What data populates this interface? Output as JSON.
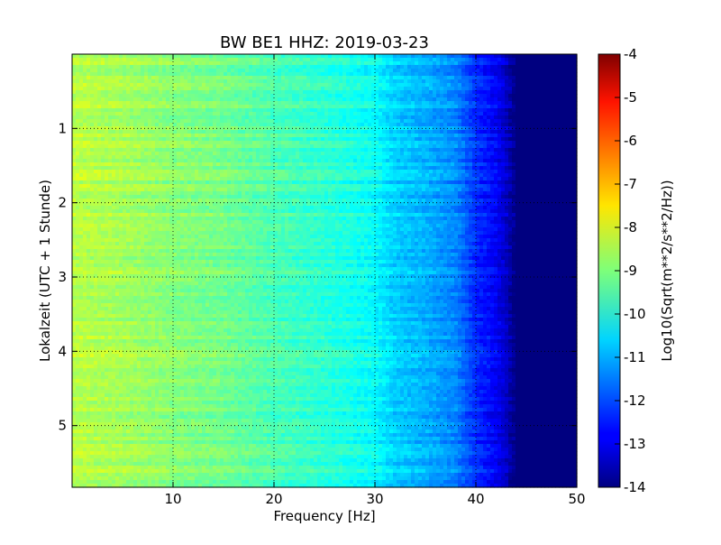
{
  "chart_data": {
    "type": "heatmap",
    "title": "BW BE1 HHZ: 2019-03-23",
    "xlabel": "Frequency [Hz]",
    "ylabel": "Lokalzeit (UTC + 1 Stunde)",
    "xlim": [
      0,
      50
    ],
    "ylim": [
      0,
      5.83
    ],
    "y_inverted": true,
    "x_ticks": [
      "10",
      "20",
      "30",
      "40",
      "50"
    ],
    "x_tick_values": [
      10,
      20,
      30,
      40,
      50
    ],
    "y_ticks": [
      "1",
      "2",
      "3",
      "4",
      "5"
    ],
    "y_tick_values": [
      1,
      2,
      3,
      4,
      5
    ],
    "grid": true,
    "colormap": "jet",
    "colorbar": {
      "label": "Log10(Sqrt(m**2/s**2/Hz))",
      "range": [
        -14,
        -4
      ],
      "ticks": [
        "-4",
        "-5",
        "-6",
        "-7",
        "-8",
        "-9",
        "-10",
        "-11",
        "-12",
        "-13",
        "-14"
      ],
      "tick_values": [
        -4,
        -5,
        -6,
        -7,
        -8,
        -9,
        -10,
        -11,
        -12,
        -13,
        -14
      ]
    },
    "spectrum_profile": {
      "freq_hz": [
        0,
        5,
        10,
        15,
        20,
        25,
        30,
        32,
        35,
        38,
        40,
        42,
        43,
        44,
        46,
        50
      ],
      "level": [
        -8.4,
        -8.6,
        -8.9,
        -9.1,
        -9.5,
        -9.8,
        -10.2,
        -10.7,
        -11.0,
        -11.4,
        -12.3,
        -12.8,
        -13.3,
        -14.0,
        -14.0,
        -14.0
      ]
    }
  }
}
